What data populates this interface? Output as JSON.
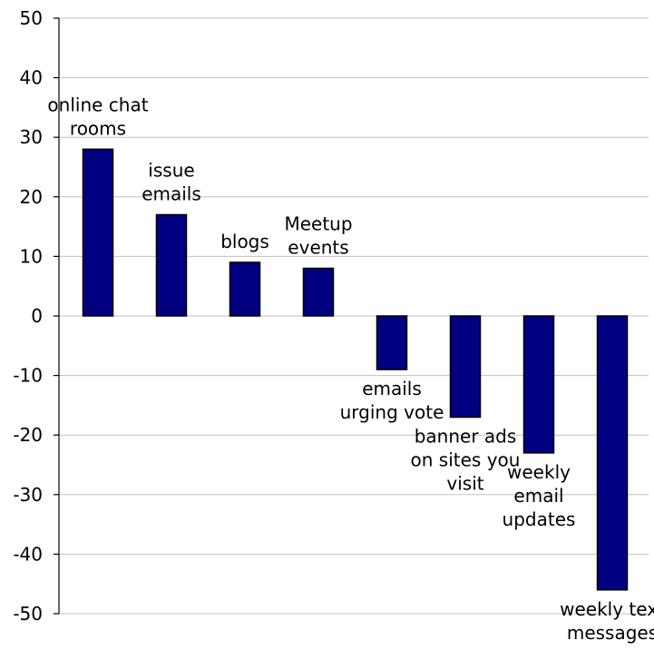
{
  "chart_data": {
    "type": "bar",
    "title": "",
    "xlabel": "",
    "ylabel": "",
    "ylim": [
      -50,
      50
    ],
    "yticks": [
      50,
      40,
      30,
      20,
      10,
      0,
      -10,
      -20,
      -30,
      -40,
      -50
    ],
    "ytick_labels": [
      "50",
      "40",
      "30",
      "20",
      "10",
      "0",
      "-10",
      "-20",
      "-30",
      "-40",
      "-50"
    ],
    "grid": true,
    "legend": "none",
    "bar_color": "#000080",
    "categories": [
      {
        "lines": [
          "online chat",
          "rooms"
        ],
        "value": 28
      },
      {
        "lines": [
          "issue",
          "emails"
        ],
        "value": 17
      },
      {
        "lines": [
          "blogs"
        ],
        "value": 9
      },
      {
        "lines": [
          "Meetup",
          "events"
        ],
        "value": 8
      },
      {
        "lines": [
          "emails",
          "urging vote"
        ],
        "value": -9
      },
      {
        "lines": [
          "banner ads",
          "on sites you",
          "visit"
        ],
        "value": -17
      },
      {
        "lines": [
          "weekly",
          "email",
          "updates"
        ],
        "value": -23
      },
      {
        "lines": [
          "weekly text",
          "messages"
        ],
        "value": -46
      }
    ]
  }
}
